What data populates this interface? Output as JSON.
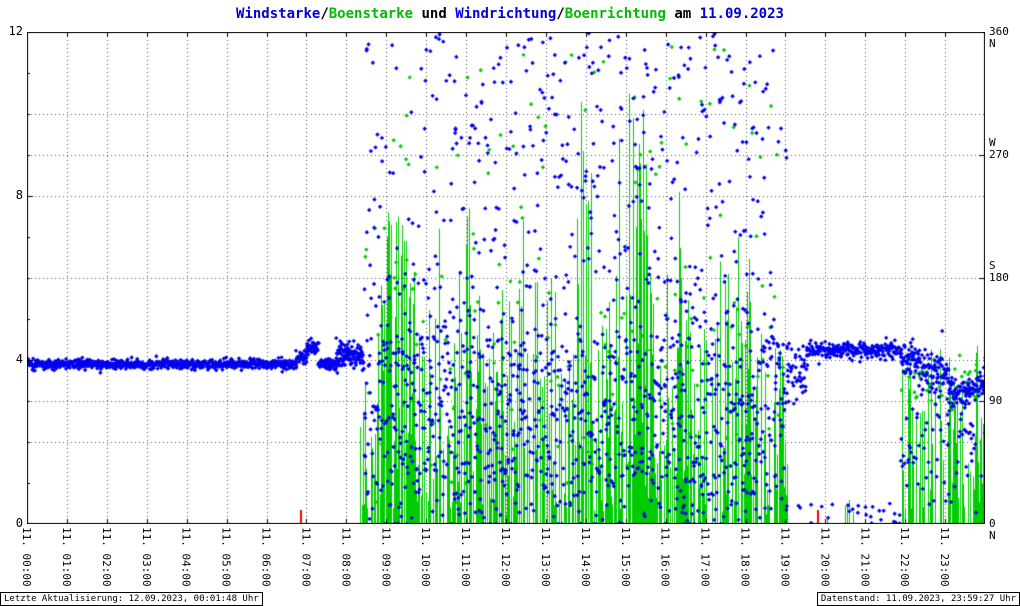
{
  "footer": {
    "left": "Letzte Aktualisierung: 12.09.2023, 00:01:48 Uhr",
    "right": "Datenstand: 11.09.2023, 23:59:27 Uhr"
  },
  "chart_data": {
    "type": "mixed",
    "title_text": "Windstarke/Boenstarke und Windrichtung/Boenrichtung am 11.09.2023",
    "title_segments": [
      {
        "text": "Windstarke",
        "color": "#0000dd"
      },
      {
        "text": "/",
        "color": "#000000"
      },
      {
        "text": "Boenstarke",
        "color": "#00bb00"
      },
      {
        "text": " und ",
        "color": "#000000"
      },
      {
        "text": "Windrichtung",
        "color": "#0000dd"
      },
      {
        "text": "/",
        "color": "#000000"
      },
      {
        "text": "Boenrichtung",
        "color": "#00bb00"
      },
      {
        "text": " am ",
        "color": "#000000"
      },
      {
        "text": "11.09.2023",
        "color": "#0000dd"
      }
    ],
    "date": "11.09.2023",
    "x_axis": {
      "range_hours": [
        0,
        24
      ],
      "labels": [
        "11. 00:00",
        "11. 01:00",
        "11. 02:00",
        "11. 03:00",
        "11. 04:00",
        "11. 05:00",
        "11. 06:00",
        "11. 07:00",
        "11. 08:00",
        "11. 09:00",
        "11. 10:00",
        "11. 11:00",
        "11. 12:00",
        "11. 13:00",
        "11. 14:00",
        "11. 15:00",
        "11. 16:00",
        "11. 17:00",
        "11. 18:00",
        "11. 19:00",
        "11. 20:00",
        "11. 21:00",
        "11. 22:00",
        "11. 23:00"
      ]
    },
    "y_left": {
      "range": [
        0,
        12
      ],
      "ticks": [
        {
          "label": "12",
          "value": 12
        },
        {
          "label": "8",
          "value": 8
        },
        {
          "label": "4",
          "value": 4
        },
        {
          "label": "0",
          "value": 0
        }
      ]
    },
    "y_right": {
      "range": [
        0,
        360
      ],
      "labels": [
        {
          "text": "360",
          "value": 360,
          "dy": 0
        },
        {
          "text": "N",
          "value": 360,
          "dy": 12
        },
        {
          "text": "W",
          "value": 270,
          "dy": -12
        },
        {
          "text": "270",
          "value": 270,
          "dy": 0
        },
        {
          "text": "S",
          "value": 180,
          "dy": -12
        },
        {
          "text": "180",
          "value": 180,
          "dy": 0
        },
        {
          "text": "90",
          "value": 90,
          "dy": 0
        },
        {
          "text": "0",
          "value": 0,
          "dy": 0
        },
        {
          "text": "N",
          "value": 0,
          "dy": 12
        }
      ]
    },
    "grid": {
      "left_values": [
        2,
        4,
        6,
        8,
        10
      ],
      "right_values": [
        90,
        270
      ],
      "hour_step": 1
    },
    "colors": {
      "wind": "#0000ee",
      "gust": "#00cc00",
      "grid": "#555555",
      "axis": "#000000",
      "sun": "#ff0000"
    },
    "sun_marks": [
      6.87,
      19.82
    ],
    "seed": 1234,
    "series": {
      "wind_direction": {
        "name": "Windrichtung",
        "axis": "right",
        "color": "#0000ee",
        "size": 2.2,
        "segments": [
          {
            "t0": 0.0,
            "t1": 6.75,
            "per_min": 2,
            "parts": [
              {
                "type": "n",
                "a": 117,
                "b": 1.7
              }
            ]
          },
          {
            "t0": 6.75,
            "t1": 7.0,
            "per_min": 2,
            "parts": [
              {
                "type": "n",
                "a": 122,
                "b": 2.5
              }
            ]
          },
          {
            "t0": 7.0,
            "t1": 7.3,
            "per_min": 2,
            "parts": [
              {
                "type": "n",
                "a": 129,
                "b": 2.5
              }
            ]
          },
          {
            "t0": 7.3,
            "t1": 7.75,
            "per_min": 2,
            "parts": [
              {
                "type": "n",
                "a": 117,
                "b": 2.0
              }
            ]
          },
          {
            "t0": 7.75,
            "t1": 8.45,
            "per_min": 2.5,
            "parts": [
              {
                "type": "n",
                "a": 124,
                "b": 5.0
              }
            ]
          },
          {
            "t0": 8.45,
            "t1": 10.0,
            "per_min": 1.3,
            "parts": [
              {
                "p": 0.55,
                "type": "n",
                "a": 115,
                "b": 30
              },
              {
                "p": 0.2,
                "type": "u",
                "a": 250,
                "b": 360
              },
              {
                "p": 0.15,
                "type": "u",
                "a": 150,
                "b": 250
              },
              {
                "p": 0.1,
                "type": "u",
                "a": 10,
                "b": 60
              }
            ]
          },
          {
            "t0": 10.0,
            "t1": 18.5,
            "per_min": 1.4,
            "parts": [
              {
                "p": 0.45,
                "type": "n",
                "a": 120,
                "b": 38
              },
              {
                "p": 0.3,
                "type": "u",
                "a": 255,
                "b": 360
              },
              {
                "p": 0.15,
                "type": "u",
                "a": 170,
                "b": 255
              },
              {
                "p": 0.1,
                "type": "u",
                "a": 5,
                "b": 60
              }
            ]
          },
          {
            "t0": 18.5,
            "t1": 19.05,
            "per_min": 1.2,
            "parts": [
              {
                "p": 0.6,
                "type": "n",
                "a": 125,
                "b": 25
              },
              {
                "p": 0.2,
                "type": "u",
                "a": 250,
                "b": 350
              },
              {
                "p": 0.2,
                "type": "u",
                "a": 60,
                "b": 100
              }
            ]
          },
          {
            "t0": 19.05,
            "t1": 19.55,
            "per_min": 1.6,
            "parts": [
              {
                "type": "n",
                "a": 115,
                "b": 12
              }
            ]
          },
          {
            "t0": 19.55,
            "t1": 21.9,
            "per_min": 1.7,
            "parts": [
              {
                "type": "n",
                "a": 127,
                "b": 3
              }
            ]
          },
          {
            "t0": 21.9,
            "t1": 22.35,
            "per_min": 2,
            "parts": [
              {
                "type": "n",
                "a": 122,
                "b": 6
              }
            ]
          },
          {
            "t0": 22.35,
            "t1": 23.1,
            "per_min": 1.8,
            "parts": [
              {
                "type": "n",
                "a": 110,
                "b": 7
              }
            ]
          },
          {
            "t0": 23.1,
            "t1": 23.6,
            "per_min": 1.8,
            "parts": [
              {
                "type": "n",
                "a": 97,
                "b": 6
              }
            ]
          },
          {
            "t0": 23.6,
            "t1": 24.0,
            "per_min": 1.8,
            "parts": [
              {
                "type": "n",
                "a": 100,
                "b": 5
              }
            ]
          }
        ]
      },
      "wind_speed": {
        "name": "Windstarke",
        "axis": "left",
        "color": "#0000ee",
        "size": 2.2,
        "segments": [
          {
            "t0": 8.45,
            "t1": 19.0,
            "per_min": 1.0,
            "parts": [
              {
                "p": 0.7,
                "type": "n",
                "a": 1.6,
                "b": 1.0
              },
              {
                "p": 0.3,
                "type": "u",
                "a": 2.5,
                "b": 4.6
              }
            ]
          },
          {
            "t0": 19.0,
            "t1": 21.9,
            "per_min": 0.2,
            "parts": [
              {
                "type": "u",
                "a": 0,
                "b": 0.5
              }
            ]
          },
          {
            "t0": 21.9,
            "t1": 24.0,
            "per_min": 0.5,
            "parts": [
              {
                "type": "n",
                "a": 1.8,
                "b": 0.9
              }
            ]
          }
        ]
      },
      "gust_direction": {
        "name": "Boenrichtung",
        "axis": "right",
        "color": "#00cc00",
        "size": 2.2,
        "segments": [
          {
            "t0": 8.45,
            "t1": 19.0,
            "per_min": 0.3,
            "parts": [
              {
                "p": 0.5,
                "type": "n",
                "a": 120,
                "b": 40
              },
              {
                "p": 0.3,
                "type": "u",
                "a": 250,
                "b": 360
              },
              {
                "p": 0.2,
                "type": "u",
                "a": 30,
                "b": 250
              }
            ]
          },
          {
            "t0": 21.9,
            "t1": 24.0,
            "per_min": 0.3,
            "parts": [
              {
                "type": "n",
                "a": 107,
                "b": 10
              }
            ]
          }
        ]
      },
      "gust_speed_bars": {
        "name": "Boenstarke",
        "axis": "left",
        "color": "#00cc00",
        "segments": [
          {
            "t0": 8.35,
            "t1": 8.7,
            "p": 0.5,
            "lo": 0.2,
            "hi": 3.5
          },
          {
            "t0": 8.7,
            "t1": 9.6,
            "p": 0.6,
            "lo": 0.3,
            "hi": 7.6
          },
          {
            "t0": 9.6,
            "t1": 10.9,
            "p": 0.6,
            "lo": 0.3,
            "hi": 6.3
          },
          {
            "t0": 10.9,
            "t1": 11.35,
            "p": 0.6,
            "lo": 0.5,
            "hi": 7.6
          },
          {
            "t0": 11.35,
            "t1": 13.7,
            "p": 0.55,
            "lo": 0.2,
            "hi": 6.0
          },
          {
            "t0": 13.7,
            "t1": 14.15,
            "p": 0.6,
            "lo": 0.5,
            "hi": 9.0
          },
          {
            "t0": 14.15,
            "t1": 15.0,
            "p": 0.55,
            "lo": 0.3,
            "hi": 6.5
          },
          {
            "t0": 15.0,
            "t1": 15.6,
            "p": 0.6,
            "lo": 0.5,
            "hi": 9.5
          },
          {
            "t0": 15.6,
            "t1": 16.5,
            "p": 0.55,
            "lo": 0.3,
            "hi": 7.0
          },
          {
            "t0": 16.5,
            "t1": 17.35,
            "p": 0.5,
            "lo": 0.2,
            "hi": 5.5
          },
          {
            "t0": 17.35,
            "t1": 18.45,
            "p": 0.6,
            "lo": 0.3,
            "hi": 6.6
          },
          {
            "t0": 18.45,
            "t1": 19.05,
            "p": 0.5,
            "lo": 0.2,
            "hi": 4.3
          },
          {
            "t0": 19.05,
            "t1": 21.9,
            "p": 0.04,
            "lo": 0.1,
            "hi": 0.7
          },
          {
            "t0": 21.9,
            "t1": 24.0,
            "p": 0.55,
            "lo": 0.2,
            "hi": 4.4
          }
        ],
        "spikes": [
          [
            9.05,
            7.6
          ],
          [
            9.12,
            7.3
          ],
          [
            9.3,
            7.5
          ],
          [
            10.32,
            7.2
          ],
          [
            11.02,
            7.5
          ],
          [
            11.08,
            7.7
          ],
          [
            12.42,
            7.4
          ],
          [
            13.88,
            10.3
          ],
          [
            13.93,
            9.1
          ],
          [
            14.83,
            9.4
          ],
          [
            15.08,
            10.5
          ],
          [
            15.18,
            9.9
          ],
          [
            15.28,
            8.7
          ],
          [
            15.43,
            10.1
          ],
          [
            16.33,
            8.1
          ],
          [
            17.8,
            7.0
          ]
        ]
      }
    }
  }
}
